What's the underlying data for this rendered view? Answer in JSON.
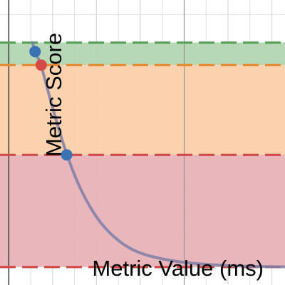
{
  "chart_data": {
    "type": "line",
    "xlabel": "Metric Value (ms)",
    "ylabel": "Metric Score",
    "xlim": [
      -0.1,
      3.15
    ],
    "ylim": [
      -0.08,
      1.19
    ],
    "grid": true,
    "colors": {
      "curve": "#7f7fa6",
      "green_band": "#b2d6b2",
      "orange_band": "#fbd0a9",
      "red_band": "#e8b2b8",
      "green_line": "#5aa05a",
      "orange_line": "#e58a35",
      "red_line": "#d04848",
      "blue_point": "#3b72b4",
      "red_point": "#d44a44",
      "grid": "#d8d8d8",
      "axis": "#444444"
    },
    "bands": [
      {
        "name": "green",
        "ymin": 0.9,
        "ymax": 1.0
      },
      {
        "name": "orange",
        "ymin": 0.5,
        "ymax": 0.9
      },
      {
        "name": "red",
        "ymin": 0.0,
        "ymax": 0.5
      }
    ],
    "thresholds": [
      {
        "y": 1.0,
        "color": "green"
      },
      {
        "y": 0.9,
        "color": "orange"
      },
      {
        "y": 0.5,
        "color": "red"
      },
      {
        "y": 0.0,
        "color": "red"
      }
    ],
    "points": [
      {
        "x": 0.3,
        "y": 0.96,
        "color": "blue"
      },
      {
        "x": 0.37,
        "y": 0.9,
        "color": "red"
      },
      {
        "x": 0.66,
        "y": 0.5,
        "color": "blue"
      }
    ],
    "curve": {
      "x": [
        0.27,
        0.3,
        0.37,
        0.45,
        0.55,
        0.66,
        0.8,
        0.95,
        1.1,
        1.3,
        1.5,
        1.75,
        2.0,
        2.3,
        2.6,
        2.9,
        3.15
      ],
      "y": [
        1.0,
        0.96,
        0.9,
        0.78,
        0.64,
        0.5,
        0.36,
        0.25,
        0.17,
        0.1,
        0.06,
        0.035,
        0.02,
        0.01,
        0.005,
        0.002,
        0.001
      ]
    }
  }
}
